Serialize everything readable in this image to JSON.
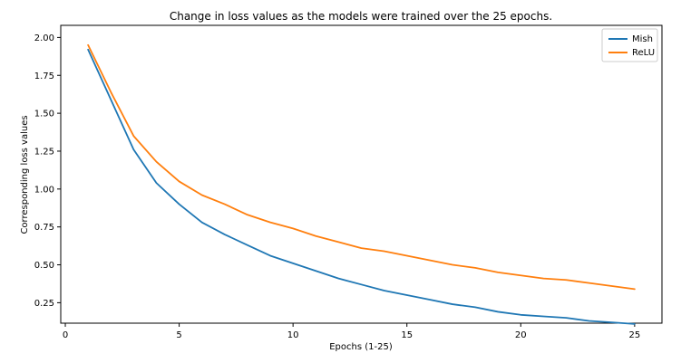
{
  "chart_data": {
    "type": "line",
    "title": "Change in loss values as the models were trained over the 25 epochs.",
    "xlabel": "Epochs (1-25)",
    "ylabel": "Corresponding loss values",
    "xlim": [
      -0.2,
      26.2
    ],
    "ylim": [
      0.115,
      2.08
    ],
    "x_ticks": [
      0,
      5,
      10,
      15,
      20,
      25
    ],
    "y_ticks": [
      0.25,
      0.5,
      0.75,
      1.0,
      1.25,
      1.5,
      1.75,
      2.0
    ],
    "x_tick_labels": [
      "0",
      "5",
      "10",
      "15",
      "20",
      "25"
    ],
    "y_tick_labels": [
      "0.25",
      "0.50",
      "0.75",
      "1.00",
      "1.25",
      "1.50",
      "1.75",
      "2.00"
    ],
    "grid": false,
    "legend_placement": "top-right",
    "x": [
      1,
      2,
      3,
      4,
      5,
      6,
      7,
      8,
      9,
      10,
      11,
      12,
      13,
      14,
      15,
      16,
      17,
      18,
      19,
      20,
      21,
      22,
      23,
      24,
      25
    ],
    "series": [
      {
        "name": "Mish",
        "color": "#1f77b4",
        "values": [
          1.92,
          1.59,
          1.26,
          1.04,
          0.9,
          0.78,
          0.7,
          0.63,
          0.56,
          0.51,
          0.46,
          0.41,
          0.37,
          0.33,
          0.3,
          0.27,
          0.24,
          0.22,
          0.19,
          0.17,
          0.16,
          0.15,
          0.13,
          0.12,
          0.11
        ]
      },
      {
        "name": "ReLU",
        "color": "#ff7f0e",
        "values": [
          1.95,
          1.64,
          1.35,
          1.18,
          1.05,
          0.96,
          0.9,
          0.83,
          0.78,
          0.74,
          0.69,
          0.65,
          0.61,
          0.59,
          0.56,
          0.53,
          0.5,
          0.48,
          0.45,
          0.43,
          0.41,
          0.4,
          0.38,
          0.36,
          0.34
        ]
      }
    ]
  }
}
